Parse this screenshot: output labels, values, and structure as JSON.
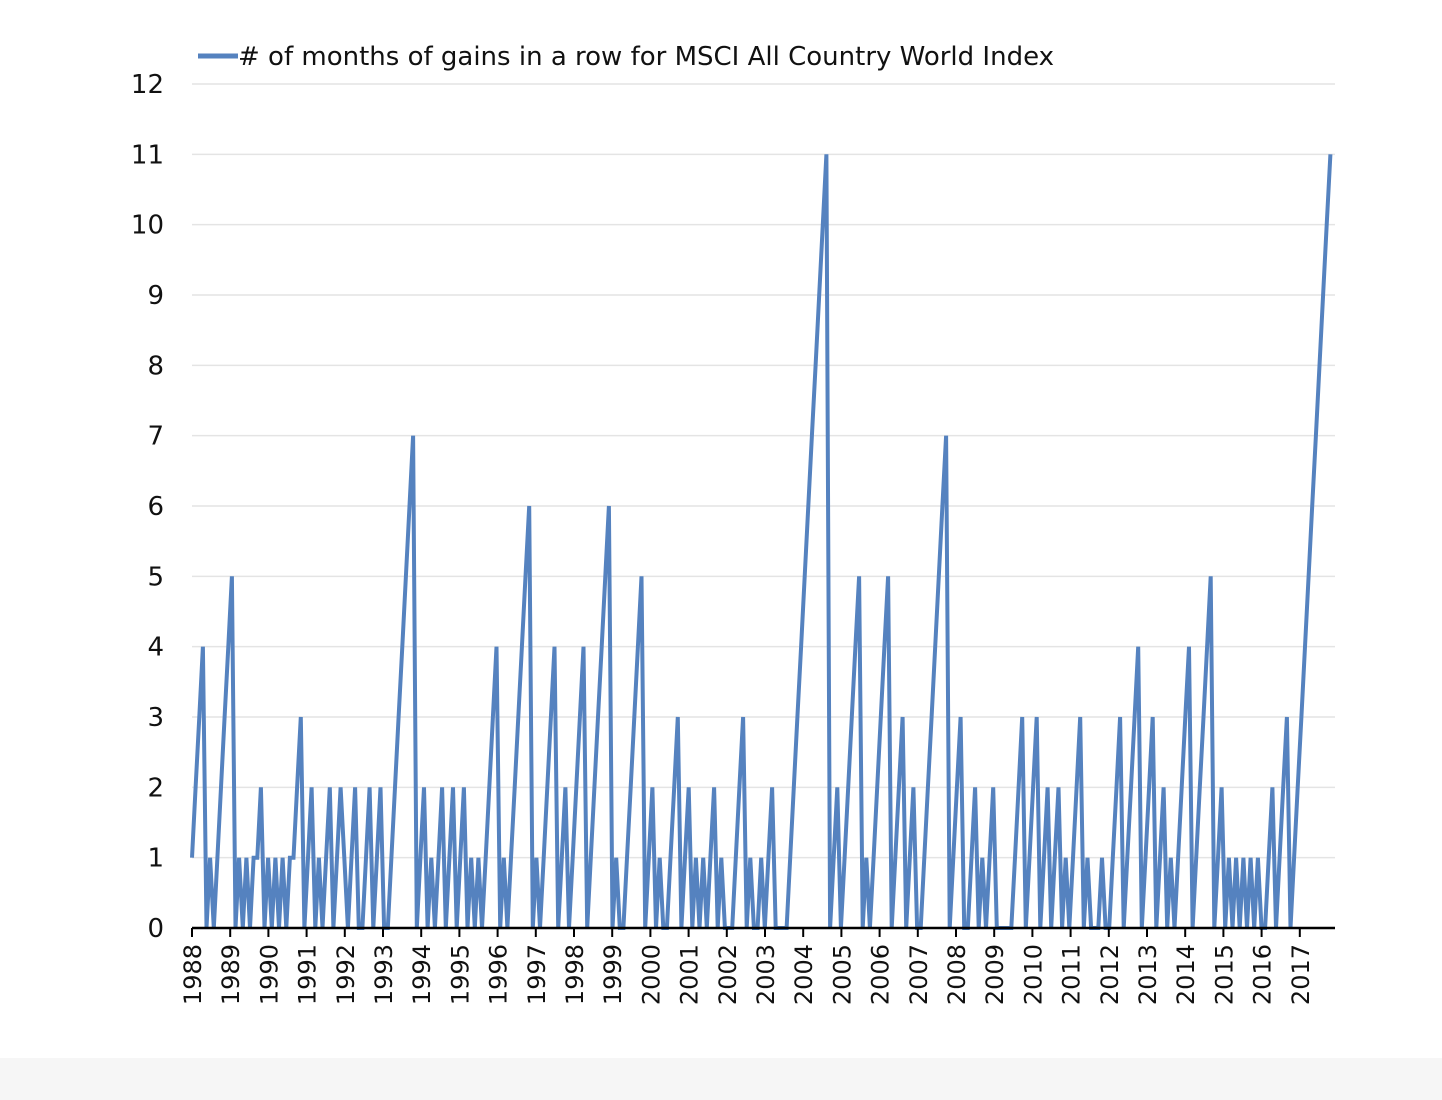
{
  "chart_data": {
    "type": "line",
    "title": "",
    "xlabel": "",
    "ylabel": "",
    "ylim": [
      0,
      12
    ],
    "yticks": [
      "0",
      "1",
      "2",
      "3",
      "4",
      "5",
      "6",
      "7",
      "8",
      "9",
      "10",
      "11",
      "12"
    ],
    "x_start_year": 1988,
    "x_end": 2017.8,
    "x_tick_labels": [
      "1988",
      "1989",
      "1990",
      "1991",
      "1992",
      "1993",
      "1994",
      "1995",
      "1996",
      "1997",
      "1998",
      "1999",
      "2000",
      "2001",
      "2002",
      "2003",
      "2004",
      "2005",
      "2006",
      "2007",
      "2008",
      "2009",
      "2010",
      "2011",
      "2012",
      "2013",
      "2014",
      "2015",
      "2016",
      "2017"
    ],
    "grid": true,
    "legend_position": "top-left",
    "color": "#5582bf",
    "series": [
      {
        "name": "# of months of gains in a row for MSCI All Country World Index",
        "values": [
          1,
          2,
          3,
          4,
          0,
          1,
          0,
          1,
          2,
          3,
          4,
          5,
          0,
          1,
          0,
          1,
          0,
          1,
          1,
          2,
          0,
          1,
          0,
          1,
          0,
          1,
          0,
          1,
          1,
          2,
          3,
          0,
          1,
          2,
          0,
          1,
          0,
          1,
          2,
          0,
          1,
          2,
          1,
          0,
          1,
          2,
          0,
          0,
          1,
          2,
          0,
          1,
          2,
          0,
          0,
          1,
          2,
          3,
          4,
          5,
          6,
          7,
          0,
          1,
          2,
          0,
          1,
          0,
          1,
          2,
          0,
          1,
          2,
          0,
          1,
          2,
          0,
          1,
          0,
          1,
          0,
          1,
          2,
          3,
          4,
          0,
          1,
          0,
          1,
          2,
          3,
          4,
          5,
          6,
          0,
          1,
          0,
          1,
          2,
          3,
          4,
          0,
          1,
          2,
          0,
          1,
          2,
          3,
          4,
          0,
          1,
          2,
          3,
          4,
          5,
          6,
          0,
          1,
          0,
          0,
          1,
          2,
          3,
          4,
          5,
          0,
          1,
          2,
          0,
          1,
          0,
          0,
          1,
          2,
          3,
          0,
          1,
          2,
          0,
          1,
          0,
          1,
          0,
          1,
          2,
          0,
          1,
          0,
          0,
          0,
          1,
          2,
          3,
          0,
          1,
          0,
          0,
          1,
          0,
          1,
          2,
          0,
          0,
          0,
          0,
          1,
          2,
          3,
          4,
          5,
          6,
          7,
          8,
          9,
          10,
          11,
          0,
          1,
          2,
          0,
          1,
          2,
          3,
          4,
          5,
          0,
          1,
          0,
          1,
          2,
          3,
          4,
          5,
          0,
          1,
          2,
          3,
          0,
          1,
          2,
          0,
          0,
          1,
          2,
          3,
          4,
          5,
          6,
          7,
          0,
          1,
          2,
          3,
          0,
          0,
          1,
          2,
          0,
          1,
          0,
          1,
          2,
          0,
          0,
          0,
          0,
          0,
          1,
          2,
          3,
          0,
          1,
          2,
          3,
          0,
          1,
          2,
          0,
          1,
          2,
          0,
          1,
          0,
          1,
          2,
          3,
          0,
          1,
          0,
          0,
          0,
          1,
          0,
          0,
          1,
          2,
          3,
          0,
          1,
          2,
          3,
          4,
          0,
          1,
          2,
          3,
          0,
          1,
          2,
          0,
          1,
          0,
          1,
          2,
          3,
          4,
          0,
          1,
          2,
          3,
          4,
          5,
          0,
          1,
          2,
          0,
          1,
          0,
          1,
          0,
          1,
          0,
          1,
          0,
          1,
          0,
          0,
          1,
          2,
          0,
          1,
          2,
          3,
          0,
          1,
          2,
          3,
          4,
          5,
          6,
          7,
          8,
          9,
          10,
          11
        ]
      }
    ]
  }
}
